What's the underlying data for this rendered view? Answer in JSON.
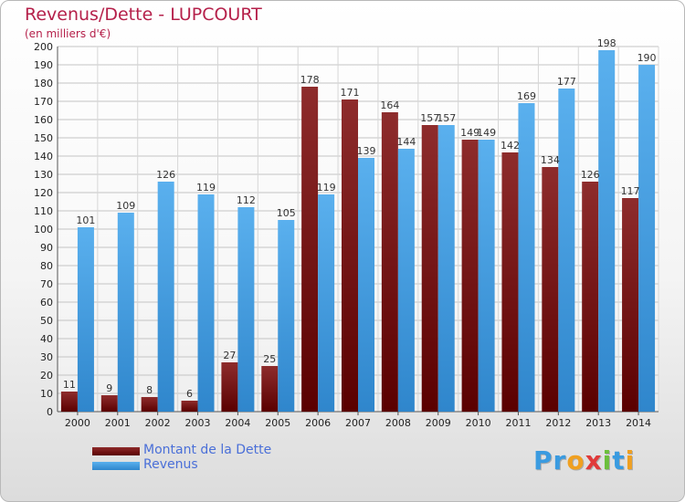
{
  "header": {
    "title": "Revenus/Dette - LUPCOURT",
    "subtitle": "(en milliers d'€)"
  },
  "logo": {
    "text": "Proxiti",
    "letters": [
      {
        "ch": "P",
        "color": "#3a9be0"
      },
      {
        "ch": "r",
        "color": "#3a9be0"
      },
      {
        "ch": "o",
        "color": "#f0a020"
      },
      {
        "ch": "x",
        "color": "#e03a3a"
      },
      {
        "ch": "i",
        "color": "#6cbf3c"
      },
      {
        "ch": "t",
        "color": "#3a9be0"
      },
      {
        "ch": "i",
        "color": "#f0a020"
      }
    ]
  },
  "chart_data": {
    "type": "bar",
    "title": "Revenus/Dette - LUPCOURT",
    "subtitle": "(en milliers d'€)",
    "categories": [
      "2000",
      "2001",
      "2002",
      "2003",
      "2004",
      "2005",
      "2006",
      "2007",
      "2008",
      "2009",
      "2010",
      "2011",
      "2012",
      "2013",
      "2014"
    ],
    "series": [
      {
        "name": "Montant de la Dette",
        "color": "#7a1a1a",
        "values": [
          11,
          9,
          8,
          6,
          27,
          25,
          178,
          171,
          164,
          157,
          149,
          142,
          134,
          126,
          117
        ]
      },
      {
        "name": "Revenus",
        "color": "#4aa3e6",
        "values": [
          101,
          109,
          126,
          119,
          112,
          105,
          119,
          139,
          144,
          157,
          149,
          169,
          177,
          198,
          190
        ]
      }
    ],
    "ylim": [
      0,
      200
    ],
    "ytick_step": 10,
    "grid": true,
    "legend_position": "bottom-left"
  }
}
